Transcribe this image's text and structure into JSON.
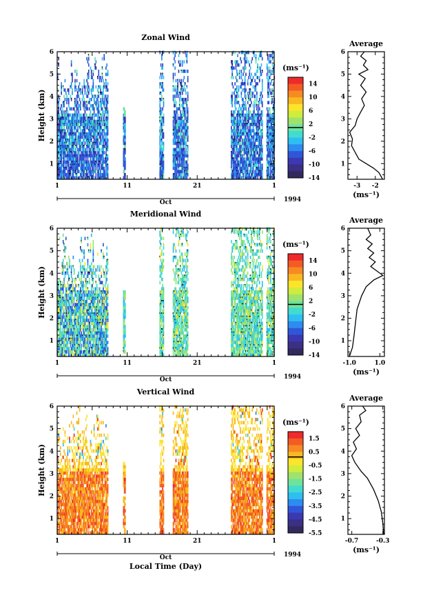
{
  "chart_data": [
    {
      "type": "heatmap",
      "title": "Zonal Wind",
      "xlabel": "",
      "ylabel": "Height (km)",
      "x_tick_labels": [
        "1",
        "11",
        "21",
        "1"
      ],
      "month_label": "Oct",
      "year_label": "1994",
      "y_ticks": [
        1,
        2,
        3,
        4,
        5,
        6
      ],
      "ylim": [
        0.3,
        6
      ],
      "colorbar_unit": "(ms⁻¹)",
      "colorbar_ticks": [
        "14",
        "10",
        "6",
        "2",
        "-2",
        "-6",
        "-10",
        "-14"
      ],
      "colorbar_range": [
        -16,
        16
      ],
      "profile": {
        "title": "Average",
        "xlabel": "(ms⁻¹)",
        "x_ticks": [
          "-3",
          "-2"
        ],
        "x_tick_values": [
          -3,
          -2
        ],
        "xlim": [
          -3.5,
          -1.5
        ],
        "y_ticks": [
          1,
          2,
          3,
          4,
          5,
          6
        ],
        "ylim": [
          0.3,
          6
        ],
        "points": [
          [
            -1.6,
            0.3
          ],
          [
            -1.8,
            0.6
          ],
          [
            -2.1,
            0.8
          ],
          [
            -2.5,
            1.0
          ],
          [
            -2.9,
            1.2
          ],
          [
            -3.1,
            1.5
          ],
          [
            -3.3,
            1.8
          ],
          [
            -3.25,
            2.1
          ],
          [
            -3.4,
            2.4
          ],
          [
            -3.1,
            2.7
          ],
          [
            -3.0,
            3.0
          ],
          [
            -2.8,
            3.3
          ],
          [
            -2.6,
            3.6
          ],
          [
            -2.75,
            3.9
          ],
          [
            -2.5,
            4.2
          ],
          [
            -2.8,
            4.5
          ],
          [
            -2.55,
            4.8
          ],
          [
            -2.9,
            5.0
          ],
          [
            -2.4,
            5.2
          ],
          [
            -2.65,
            5.4
          ],
          [
            -2.5,
            5.6
          ],
          [
            -2.8,
            5.8
          ],
          [
            -2.6,
            6.0
          ]
        ]
      }
    },
    {
      "type": "heatmap",
      "title": "Meridional Wind",
      "xlabel": "",
      "ylabel": "Height (km)",
      "x_tick_labels": [
        "1",
        "11",
        "21",
        "1"
      ],
      "month_label": "Oct",
      "year_label": "1994",
      "y_ticks": [
        1,
        2,
        3,
        4,
        5,
        6
      ],
      "ylim": [
        0.3,
        6
      ],
      "colorbar_unit": "(ms⁻¹)",
      "colorbar_ticks": [
        "14",
        "10",
        "6",
        "2",
        "-2",
        "-6",
        "-10",
        "-14"
      ],
      "colorbar_range": [
        -16,
        16
      ],
      "profile": {
        "title": "Average",
        "xlabel": "(ms⁻¹)",
        "x_ticks": [
          "-1.0",
          "1.0"
        ],
        "x_tick_values": [
          -1.0,
          1.0
        ],
        "xlim": [
          -1.1,
          1.3
        ],
        "y_ticks": [
          1,
          2,
          3,
          4,
          5,
          6
        ],
        "ylim": [
          0.3,
          6
        ],
        "points": [
          [
            -1.0,
            0.3
          ],
          [
            -0.8,
            0.7
          ],
          [
            -0.7,
            1.2
          ],
          [
            -0.6,
            1.8
          ],
          [
            -0.5,
            2.4
          ],
          [
            -0.2,
            3.0
          ],
          [
            0.1,
            3.4
          ],
          [
            0.6,
            3.7
          ],
          [
            1.2,
            3.9
          ],
          [
            0.8,
            4.1
          ],
          [
            0.4,
            4.3
          ],
          [
            0.7,
            4.5
          ],
          [
            0.3,
            4.7
          ],
          [
            0.6,
            4.9
          ],
          [
            0.2,
            5.1
          ],
          [
            0.5,
            5.3
          ],
          [
            0.1,
            5.5
          ],
          [
            0.4,
            5.7
          ],
          [
            0.2,
            6.0
          ]
        ]
      }
    },
    {
      "type": "heatmap",
      "title": "Vertical Wind",
      "xlabel": "Local Time (Day)",
      "ylabel": "Height (km)",
      "x_tick_labels": [
        "1",
        "11",
        "21",
        "1"
      ],
      "month_label": "Oct",
      "year_label": "1994",
      "y_ticks": [
        1,
        2,
        3,
        4,
        5,
        6
      ],
      "ylim": [
        0.3,
        6
      ],
      "colorbar_unit": "(ms⁻¹)",
      "colorbar_ticks": [
        "1.5",
        "0.5",
        "-0.5",
        "-1.5",
        "-2.5",
        "-3.5",
        "-4.5",
        "-5.5"
      ],
      "colorbar_range": [
        -6,
        2
      ],
      "profile": {
        "title": "Average",
        "xlabel": "(ms⁻¹)",
        "x_ticks": [
          "-0.7",
          "-0.3"
        ],
        "x_tick_values": [
          -0.7,
          -0.3
        ],
        "xlim": [
          -0.75,
          -0.28
        ],
        "y_ticks": [
          1,
          2,
          3,
          4,
          5,
          6
        ],
        "ylim": [
          0.3,
          6
        ],
        "points": [
          [
            -0.29,
            0.3
          ],
          [
            -0.3,
            0.8
          ],
          [
            -0.32,
            1.3
          ],
          [
            -0.36,
            1.8
          ],
          [
            -0.42,
            2.3
          ],
          [
            -0.5,
            2.8
          ],
          [
            -0.58,
            3.1
          ],
          [
            -0.66,
            3.5
          ],
          [
            -0.7,
            3.8
          ],
          [
            -0.64,
            4.1
          ],
          [
            -0.68,
            4.4
          ],
          [
            -0.6,
            4.7
          ],
          [
            -0.65,
            5.0
          ],
          [
            -0.58,
            5.3
          ],
          [
            -0.6,
            5.6
          ],
          [
            -0.52,
            5.8
          ],
          [
            -0.56,
            6.0
          ]
        ]
      }
    }
  ]
}
